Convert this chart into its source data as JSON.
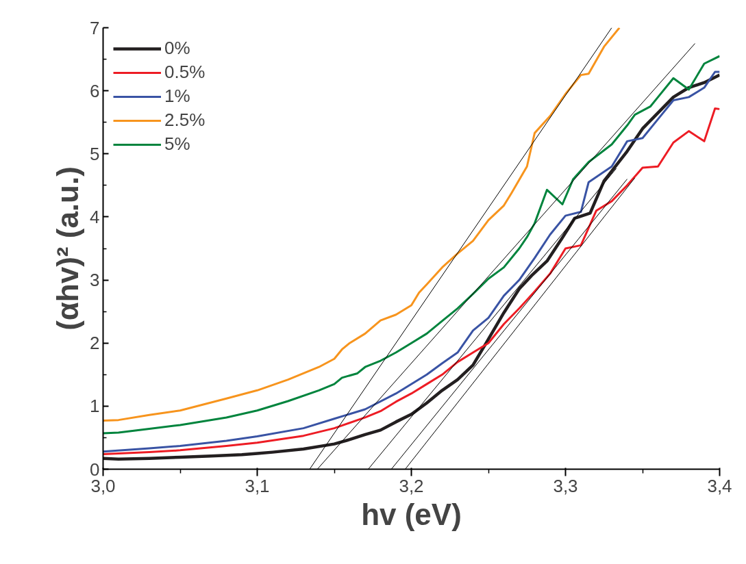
{
  "chart_data": {
    "type": "line",
    "xlabel": "hv (eV)",
    "ylabel": "(αhv)² (a.u.)",
    "xlim": [
      3.0,
      3.4
    ],
    "ylim": [
      0,
      7
    ],
    "xticks": [
      {
        "value": 3.0,
        "label": "3,0"
      },
      {
        "value": 3.1,
        "label": "3,1"
      },
      {
        "value": 3.2,
        "label": "3,2"
      },
      {
        "value": 3.3,
        "label": "3,3"
      },
      {
        "value": 3.4,
        "label": "3,4"
      }
    ],
    "yticks": [
      0,
      1,
      2,
      3,
      4,
      5,
      6,
      7
    ],
    "grid": false,
    "legend": "top left",
    "line_style": "solid",
    "marker": "none",
    "series": [
      {
        "name": "0%",
        "color": "#231f20",
        "x": [
          3.0,
          3.01,
          3.03,
          3.05,
          3.07,
          3.09,
          3.1,
          3.11,
          3.13,
          3.15,
          3.16,
          3.17,
          3.18,
          3.19,
          3.2,
          3.21,
          3.22,
          3.23,
          3.24,
          3.248,
          3.26,
          3.27,
          3.278,
          3.288,
          3.298,
          3.306,
          3.316,
          3.325,
          3.34,
          3.35,
          3.36,
          3.37,
          3.38,
          3.39,
          3.4
        ],
        "values": [
          0.17,
          0.16,
          0.17,
          0.19,
          0.21,
          0.23,
          0.25,
          0.27,
          0.32,
          0.4,
          0.47,
          0.55,
          0.62,
          0.75,
          0.87,
          1.05,
          1.25,
          1.42,
          1.65,
          1.98,
          2.48,
          2.86,
          3.07,
          3.3,
          3.67,
          3.98,
          4.06,
          4.57,
          5.04,
          5.4,
          5.65,
          5.9,
          6.05,
          6.13,
          6.25
        ]
      },
      {
        "name": "0.5%",
        "color": "#ed1c24",
        "x": [
          3.0,
          3.03,
          3.05,
          3.08,
          3.1,
          3.13,
          3.15,
          3.17,
          3.18,
          3.19,
          3.2,
          3.21,
          3.22,
          3.23,
          3.24,
          3.25,
          3.26,
          3.27,
          3.28,
          3.29,
          3.3,
          3.31,
          3.32,
          3.33,
          3.34,
          3.35,
          3.36,
          3.37,
          3.38,
          3.39,
          3.397,
          3.4
        ],
        "values": [
          0.24,
          0.27,
          0.3,
          0.37,
          0.42,
          0.53,
          0.65,
          0.82,
          0.92,
          1.07,
          1.2,
          1.35,
          1.5,
          1.7,
          1.85,
          2.0,
          2.3,
          2.55,
          2.82,
          3.1,
          3.5,
          3.55,
          4.1,
          4.25,
          4.5,
          4.78,
          4.8,
          5.18,
          5.36,
          5.2,
          5.72,
          5.71
        ]
      },
      {
        "name": "1%",
        "color": "#3953a4",
        "x": [
          3.0,
          3.03,
          3.05,
          3.08,
          3.1,
          3.13,
          3.15,
          3.17,
          3.19,
          3.21,
          3.22,
          3.23,
          3.24,
          3.25,
          3.26,
          3.27,
          3.28,
          3.29,
          3.3,
          3.31,
          3.315,
          3.33,
          3.34,
          3.35,
          3.36,
          3.37,
          3.38,
          3.39,
          3.397,
          3.4
        ],
        "values": [
          0.28,
          0.33,
          0.37,
          0.45,
          0.52,
          0.65,
          0.8,
          0.95,
          1.2,
          1.5,
          1.68,
          1.85,
          2.2,
          2.4,
          2.75,
          3.0,
          3.35,
          3.72,
          4.02,
          4.08,
          4.55,
          4.8,
          5.2,
          5.25,
          5.55,
          5.85,
          5.9,
          6.05,
          6.3,
          6.3
        ]
      },
      {
        "name": "2.5%",
        "color": "#f7941d",
        "x": [
          3.0,
          3.01,
          3.03,
          3.05,
          3.08,
          3.1,
          3.12,
          3.14,
          3.15,
          3.155,
          3.16,
          3.17,
          3.18,
          3.19,
          3.2,
          3.205,
          3.21,
          3.22,
          3.23,
          3.24,
          3.25,
          3.26,
          3.265,
          3.275,
          3.28,
          3.29,
          3.3,
          3.31,
          3.315,
          3.325,
          3.335
        ],
        "values": [
          0.77,
          0.78,
          0.86,
          0.93,
          1.12,
          1.25,
          1.42,
          1.62,
          1.75,
          1.9,
          2.0,
          2.15,
          2.36,
          2.45,
          2.6,
          2.8,
          2.93,
          3.2,
          3.42,
          3.62,
          3.95,
          4.18,
          4.38,
          4.8,
          5.33,
          5.6,
          5.95,
          6.25,
          6.27,
          6.7,
          7.0
        ]
      },
      {
        "name": "5%",
        "color": "#00843d",
        "x": [
          3.0,
          3.01,
          3.03,
          3.05,
          3.08,
          3.1,
          3.12,
          3.14,
          3.15,
          3.155,
          3.165,
          3.17,
          3.18,
          3.19,
          3.2,
          3.21,
          3.22,
          3.23,
          3.24,
          3.25,
          3.26,
          3.27,
          3.275,
          3.28,
          3.288,
          3.298,
          3.305,
          3.315,
          3.33,
          3.34,
          3.345,
          3.355,
          3.36,
          3.37,
          3.38,
          3.39,
          3.4
        ],
        "values": [
          0.57,
          0.58,
          0.64,
          0.7,
          0.82,
          0.93,
          1.08,
          1.25,
          1.35,
          1.45,
          1.52,
          1.62,
          1.72,
          1.85,
          2.0,
          2.15,
          2.35,
          2.55,
          2.78,
          3.02,
          3.2,
          3.5,
          3.68,
          3.9,
          4.43,
          4.2,
          4.6,
          4.87,
          5.15,
          5.45,
          5.62,
          5.75,
          5.9,
          6.2,
          6.02,
          6.43,
          6.55
        ]
      },
      {
        "type": "line",
        "color": "#000000",
        "x": [
          3.134,
          3.33
        ],
        "values": [
          0,
          7
        ]
      },
      {
        "type": "line",
        "color": "#000000",
        "x": [
          3.139,
          3.384
        ],
        "values": [
          0,
          6.75
        ]
      },
      {
        "type": "line",
        "color": "#000000",
        "x": [
          3.172,
          3.333
        ],
        "values": [
          0,
          4.77
        ]
      },
      {
        "type": "line",
        "color": "#000000",
        "x": [
          3.187,
          3.34
        ],
        "values": [
          0,
          4.6
        ]
      },
      {
        "type": "line",
        "color": "#000000",
        "x": [
          3.196,
          3.345
        ],
        "values": [
          0,
          4.62
        ]
      }
    ]
  }
}
